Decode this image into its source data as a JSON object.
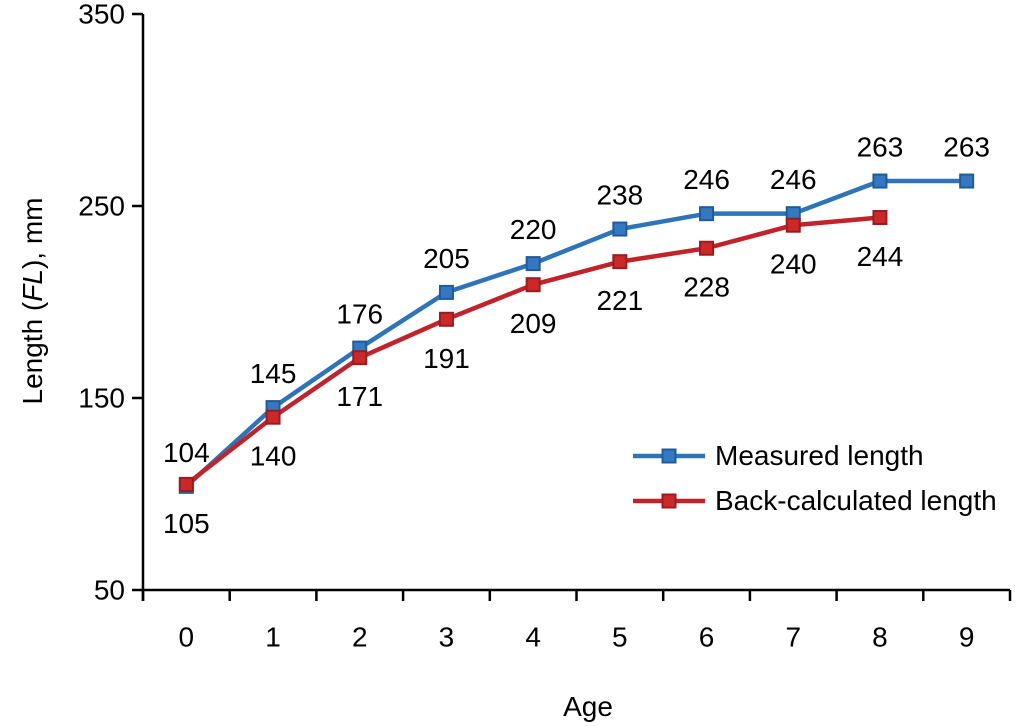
{
  "figure": {
    "xlabel": "Age",
    "ylabel": {
      "pre": "Length (",
      "italic": "FL",
      "post": "), mm"
    }
  },
  "chart_data": {
    "type": "line",
    "title": "",
    "xlabel": "Age",
    "ylabel": "Length (FL), mm",
    "categories": [
      0,
      1,
      2,
      3,
      4,
      5,
      6,
      7,
      8,
      9
    ],
    "yticks": [
      50,
      150,
      250,
      350
    ],
    "ylim": [
      50,
      350
    ],
    "grid": false,
    "data_labels": true,
    "legend_position": "inside lower right",
    "series": [
      {
        "name": "Measured length",
        "x": [
          0,
          1,
          2,
          3,
          4,
          5,
          6,
          7,
          8,
          9
        ],
        "values": [
          104,
          145,
          176,
          205,
          220,
          238,
          246,
          246,
          263,
          263
        ],
        "color": "#2E74B8",
        "marker": "square",
        "marker_fill": "#3478C2",
        "marker_stroke": "#1F5C9C",
        "label_side": "above"
      },
      {
        "name": "Back-calculated length",
        "x": [
          0,
          1,
          2,
          3,
          4,
          5,
          6,
          7,
          8
        ],
        "values": [
          105,
          140,
          171,
          191,
          209,
          221,
          228,
          240,
          244
        ],
        "color": "#C2232B",
        "marker": "square",
        "marker_fill": "#CC2828",
        "marker_stroke": "#9B1B1F",
        "label_side": "below"
      }
    ]
  }
}
